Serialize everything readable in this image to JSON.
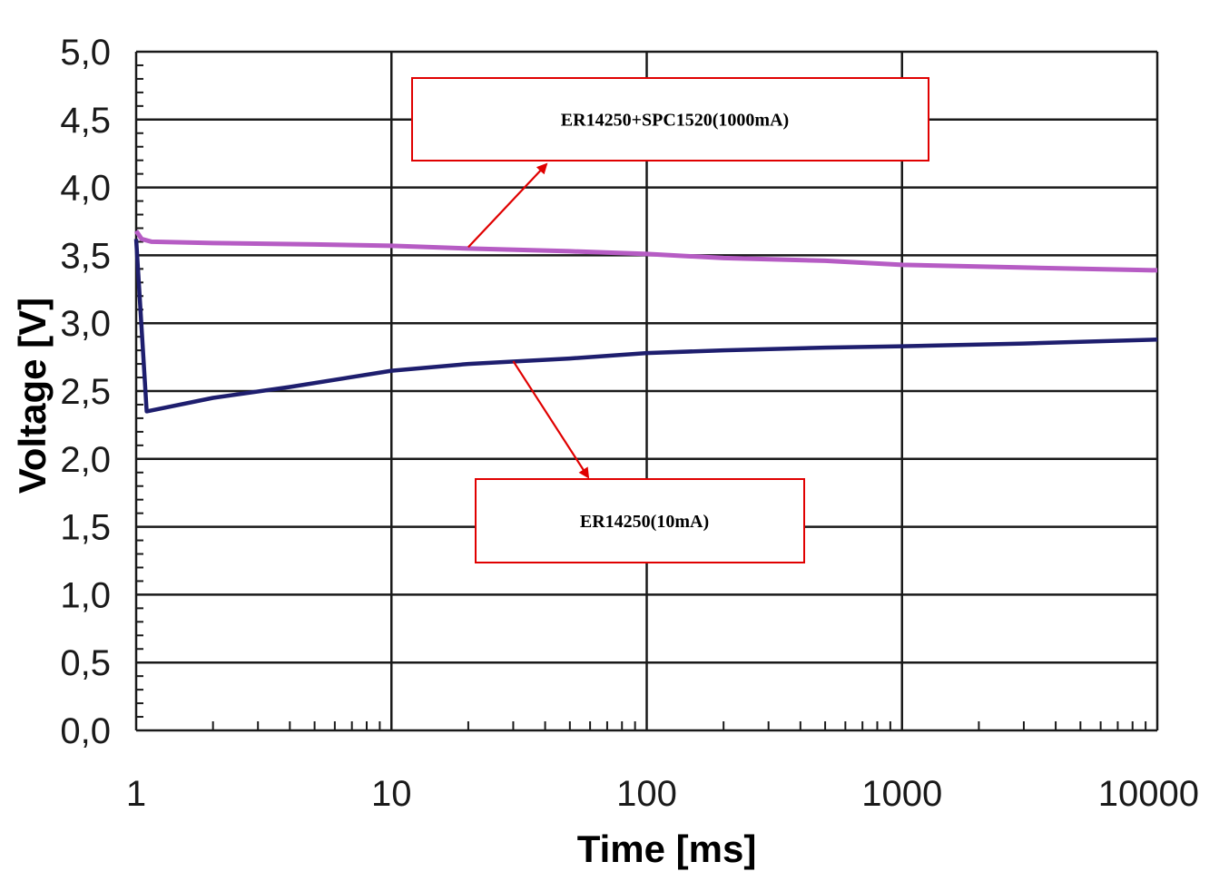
{
  "chart_data": {
    "type": "line",
    "title": "",
    "xlabel": "Time [ms]",
    "ylabel": "Voltage [V]",
    "x_scale": "log",
    "xlim": [
      1,
      10000
    ],
    "ylim": [
      0.0,
      5.0
    ],
    "grid": true,
    "x_ticks": [
      "1",
      "10",
      "100",
      "1000",
      "10000"
    ],
    "y_ticks": [
      "0,0",
      "0,5",
      "1,0",
      "1,5",
      "2,0",
      "2,5",
      "3,0",
      "3,5",
      "4,0",
      "4,5",
      "5,0"
    ],
    "colors": {
      "grid": "#1a1a1a",
      "annotation_border": "#e00000",
      "arrow": "#e00000"
    },
    "series": [
      {
        "name": "ER14250+SPC1520(1000mA)",
        "color": "#b65cc4",
        "points": [
          [
            1,
            3.68
          ],
          [
            1.05,
            3.62
          ],
          [
            1.15,
            3.6
          ],
          [
            2,
            3.59
          ],
          [
            5,
            3.58
          ],
          [
            10,
            3.57
          ],
          [
            20,
            3.55
          ],
          [
            50,
            3.53
          ],
          [
            100,
            3.51
          ],
          [
            200,
            3.48
          ],
          [
            500,
            3.46
          ],
          [
            1000,
            3.43
          ],
          [
            3000,
            3.41
          ],
          [
            10000,
            3.39
          ]
        ]
      },
      {
        "name": "ER14250(10mA)",
        "color": "#1e1e6e",
        "points": [
          [
            1,
            3.62
          ],
          [
            1.1,
            2.35
          ],
          [
            2,
            2.45
          ],
          [
            4,
            2.53
          ],
          [
            10,
            2.65
          ],
          [
            20,
            2.7
          ],
          [
            50,
            2.74
          ],
          [
            100,
            2.78
          ],
          [
            200,
            2.8
          ],
          [
            500,
            2.82
          ],
          [
            1000,
            2.83
          ],
          [
            3000,
            2.85
          ],
          [
            10000,
            2.88
          ]
        ]
      }
    ],
    "annotations": [
      {
        "text": "ER14250+SPC1520(1000mA)",
        "points_to": [
          20,
          3.56
        ]
      },
      {
        "text": "ER14250(10mA)",
        "points_to": [
          30,
          2.72
        ]
      }
    ]
  }
}
